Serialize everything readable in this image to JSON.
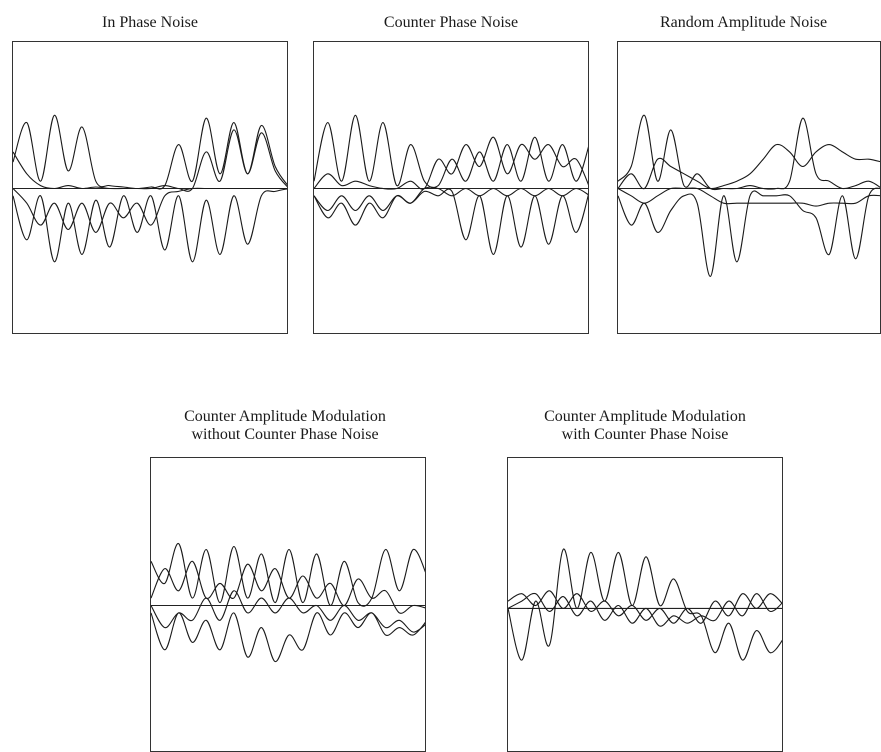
{
  "figure": {
    "panels": [
      {
        "title_lines": [
          "In Phase Noise"
        ]
      },
      {
        "title_lines": [
          "Counter Phase Noise"
        ]
      },
      {
        "title_lines": [
          "Random Amplitude Noise"
        ]
      },
      {
        "title_lines": [
          "Counter Amplitude Modulation",
          "without Counter Phase Noise"
        ]
      },
      {
        "title_lines": [
          "Counter Amplitude Modulation",
          "with Counter Phase Noise"
        ]
      }
    ]
  },
  "chart_data": [
    {
      "type": "line",
      "title": "In Phase Noise",
      "xlabel": "",
      "ylabel": "",
      "x": [
        0,
        2,
        4,
        6,
        8,
        10,
        12,
        14,
        16,
        18,
        20,
        22,
        24,
        26,
        28,
        30,
        32,
        34,
        36,
        38,
        40
      ],
      "ylim": [
        -1,
        1
      ],
      "series": [
        {
          "values": [
            0.18,
            0.45,
            0.05,
            0.5,
            0.12,
            0.42,
            0.05,
            0.02,
            0.01,
            0.0,
            0.01,
            0.02,
            0.3,
            0.05,
            0.48,
            0.1,
            0.45,
            0.1,
            0.43,
            0.15,
            0.01
          ]
        },
        {
          "values": [
            0.25,
            0.1,
            0.02,
            0.0,
            0.02,
            0.0,
            0.01,
            0.0,
            0.0,
            0.0,
            0.0,
            0.02,
            0.0,
            0.0,
            0.25,
            0.05,
            0.4,
            0.1,
            0.38,
            0.12,
            0.0
          ]
        },
        {
          "values": [
            -0.05,
            -0.35,
            -0.05,
            -0.5,
            -0.1,
            -0.45,
            -0.08,
            -0.4,
            -0.05,
            -0.3,
            -0.05,
            -0.42,
            -0.05,
            -0.5,
            -0.08,
            -0.45,
            -0.05,
            -0.38,
            -0.05,
            -0.02,
            0.0
          ]
        },
        {
          "values": [
            0.0,
            -0.1,
            -0.25,
            -0.1,
            -0.28,
            -0.1,
            -0.3,
            -0.1,
            -0.2,
            -0.1,
            -0.25,
            -0.05,
            -0.02,
            0.0,
            0.0,
            0.0,
            0.0,
            0.0,
            0.0,
            0.0,
            0.0
          ]
        }
      ]
    },
    {
      "type": "line",
      "title": "Counter Phase Noise",
      "xlabel": "",
      "ylabel": "",
      "x": [
        0,
        2,
        4,
        6,
        8,
        10,
        12,
        14,
        16,
        18,
        20,
        22,
        24,
        26,
        28,
        30,
        32,
        34,
        36,
        38,
        40
      ],
      "ylim": [
        -1,
        1
      ],
      "series": [
        {
          "values": [
            0.05,
            0.45,
            0.05,
            0.5,
            0.05,
            0.45,
            0.02,
            0.3,
            0.05,
            0.02,
            0.2,
            0.05,
            0.25,
            0.05,
            0.3,
            0.05,
            0.35,
            0.05,
            0.3,
            0.05,
            0.32
          ]
        },
        {
          "values": [
            0.0,
            0.1,
            0.02,
            0.05,
            0.02,
            0.0,
            0.0,
            0.05,
            0.0,
            0.2,
            0.1,
            0.3,
            0.15,
            0.35,
            0.1,
            0.3,
            0.2,
            0.3,
            0.15,
            0.2,
            0.0
          ]
        },
        {
          "values": [
            -0.05,
            -0.15,
            -0.05,
            -0.15,
            -0.05,
            -0.15,
            -0.05,
            -0.1,
            -0.02,
            -0.05,
            -0.02,
            -0.35,
            -0.05,
            -0.45,
            -0.05,
            -0.4,
            -0.05,
            -0.38,
            -0.05,
            -0.3,
            0.0
          ]
        },
        {
          "values": [
            -0.05,
            -0.2,
            -0.1,
            -0.25,
            -0.1,
            -0.2,
            -0.05,
            -0.1,
            0.0,
            0.0,
            -0.05,
            0.0,
            -0.05,
            0.0,
            -0.05,
            0.0,
            -0.05,
            0.0,
            -0.05,
            0.0,
            -0.05
          ]
        }
      ]
    },
    {
      "type": "line",
      "title": "Random Amplitude Noise",
      "xlabel": "",
      "ylabel": "",
      "x": [
        0,
        2,
        4,
        6,
        8,
        10,
        12,
        14,
        16,
        18,
        20,
        22,
        24,
        26,
        28,
        30,
        32,
        34,
        36,
        38,
        40
      ],
      "ylim": [
        -1,
        1
      ],
      "series": [
        {
          "values": [
            0.05,
            0.15,
            0.5,
            0.05,
            0.4,
            0.02,
            0.1,
            0.0,
            0.0,
            0.0,
            0.02,
            0.0,
            0.0,
            0.05,
            0.48,
            0.1,
            0.05,
            0.0,
            0.02,
            0.05,
            0.0
          ]
        },
        {
          "values": [
            0.0,
            0.1,
            0.0,
            0.2,
            0.15,
            0.1,
            0.05,
            0.0,
            0.02,
            0.05,
            0.1,
            0.2,
            0.3,
            0.25,
            0.15,
            0.25,
            0.3,
            0.25,
            0.2,
            0.2,
            0.18
          ]
        },
        {
          "values": [
            -0.05,
            -0.25,
            -0.1,
            -0.3,
            -0.15,
            -0.05,
            -0.1,
            -0.6,
            -0.05,
            -0.5,
            -0.05,
            -0.05,
            -0.05,
            -0.05,
            -0.15,
            -0.2,
            -0.45,
            -0.05,
            -0.48,
            -0.05,
            0.0
          ]
        },
        {
          "values": [
            0.0,
            -0.05,
            -0.1,
            -0.05,
            0.0,
            0.0,
            0.0,
            -0.05,
            -0.1,
            -0.1,
            -0.1,
            -0.1,
            -0.1,
            -0.1,
            -0.1,
            -0.12,
            -0.1,
            -0.1,
            -0.1,
            -0.05,
            -0.05
          ]
        }
      ]
    },
    {
      "type": "line",
      "title": "Counter Amplitude Modulation without Counter Phase Noise",
      "xlabel": "",
      "ylabel": "",
      "x": [
        0,
        2,
        4,
        6,
        8,
        10,
        12,
        14,
        16,
        18,
        20,
        22,
        24,
        26,
        28,
        30,
        32,
        34,
        36,
        38,
        40
      ],
      "ylim": [
        -1,
        1
      ],
      "series": [
        {
          "values": [
            0.3,
            0.15,
            0.42,
            0.05,
            0.38,
            0.02,
            0.4,
            0.05,
            0.35,
            0.02,
            0.38,
            0.02,
            0.35,
            0.0,
            0.3,
            0.02,
            0.05,
            0.38,
            0.1,
            0.38,
            0.2
          ]
        },
        {
          "values": [
            0.05,
            0.25,
            0.1,
            0.3,
            0.05,
            0.15,
            0.05,
            0.28,
            0.1,
            0.25,
            0.05,
            0.2,
            0.05,
            0.15,
            0.0,
            0.18,
            0.05,
            0.1,
            -0.05,
            0.0,
            -0.02
          ]
        },
        {
          "values": [
            -0.05,
            -0.3,
            -0.05,
            -0.25,
            -0.1,
            -0.3,
            -0.05,
            -0.35,
            -0.15,
            -0.38,
            -0.2,
            -0.3,
            -0.05,
            -0.2,
            -0.05,
            -0.15,
            -0.05,
            -0.2,
            -0.15,
            -0.2,
            -0.1
          ]
        },
        {
          "values": [
            0.0,
            -0.15,
            -0.05,
            -0.1,
            0.05,
            -0.1,
            0.1,
            -0.05,
            0.05,
            -0.05,
            0.05,
            -0.05,
            0.0,
            -0.1,
            0.0,
            -0.1,
            -0.05,
            -0.15,
            -0.1,
            -0.18,
            -0.12
          ]
        }
      ]
    },
    {
      "type": "line",
      "title": "Counter Amplitude Modulation with Counter Phase Noise",
      "xlabel": "",
      "ylabel": "",
      "x": [
        0,
        2,
        4,
        6,
        8,
        10,
        12,
        14,
        16,
        18,
        20,
        22,
        24,
        26,
        28,
        30,
        32,
        34,
        36,
        38,
        40
      ],
      "ylim": [
        -1,
        1
      ],
      "series": [
        {
          "values": [
            0.0,
            -0.35,
            0.05,
            -0.25,
            0.4,
            0.0,
            0.38,
            0.05,
            0.38,
            0.02,
            0.35,
            0.02,
            0.2,
            -0.02,
            -0.05,
            -0.3,
            -0.1,
            -0.35,
            -0.15,
            -0.3,
            -0.2
          ]
        },
        {
          "values": [
            0.05,
            0.1,
            0.02,
            0.12,
            0.0,
            0.1,
            -0.02,
            0.05,
            -0.05,
            0.02,
            -0.08,
            0.0,
            -0.1,
            0.0,
            -0.1,
            0.05,
            -0.05,
            0.1,
            0.0,
            0.1,
            0.02
          ]
        },
        {
          "values": [
            0.0,
            0.05,
            0.1,
            -0.02,
            0.08,
            -0.05,
            0.05,
            -0.08,
            0.02,
            -0.1,
            0.0,
            -0.12,
            -0.05,
            -0.1,
            -0.05,
            -0.08,
            0.05,
            -0.05,
            0.1,
            -0.02,
            0.05
          ]
        }
      ]
    }
  ]
}
